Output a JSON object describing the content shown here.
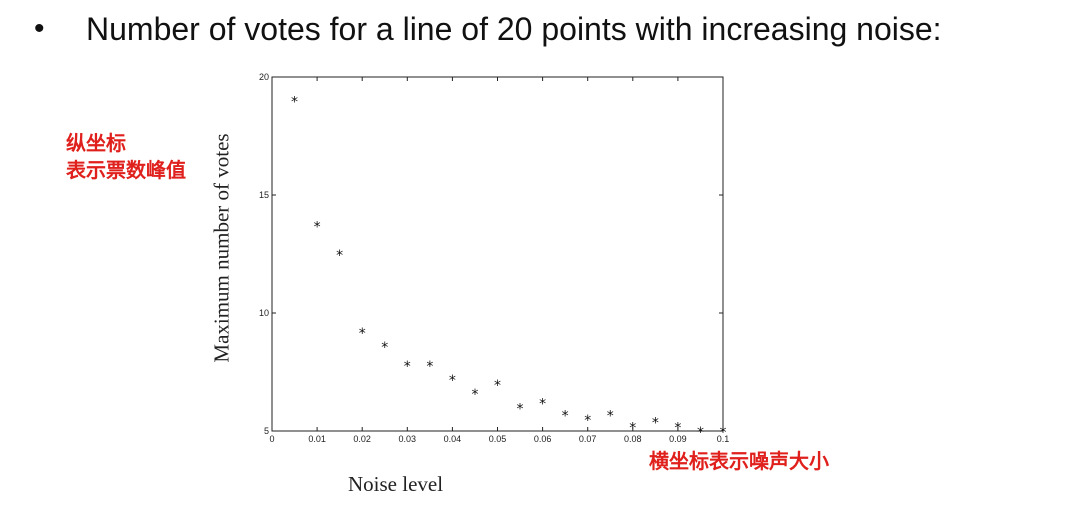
{
  "slide": {
    "bullet": "•",
    "heading": "Number of votes for a line of 20 points with increasing noise:"
  },
  "annotations": {
    "y_note_line1": "纵坐标",
    "y_note_line2": "表示票数峰值",
    "x_note": "横坐标表示噪声大小",
    "color": "#e0201c"
  },
  "chart_data": {
    "type": "scatter",
    "title": "",
    "xlabel": "Noise level",
    "ylabel": "Maximum number of votes",
    "xlim": [
      0,
      0.1
    ],
    "ylim": [
      5,
      20
    ],
    "x_ticks": [
      "0",
      "0.01",
      "0.02",
      "0.03",
      "0.04",
      "0.05",
      "0.06",
      "0.07",
      "0.08",
      "0.09",
      "0.1"
    ],
    "y_ticks": [
      "5",
      "10",
      "15",
      "20"
    ],
    "marker": "*",
    "grid": false,
    "series": [
      {
        "x": [
          0.005,
          0.01,
          0.015,
          0.02,
          0.025,
          0.03,
          0.035,
          0.04,
          0.045,
          0.05,
          0.055,
          0.06,
          0.065,
          0.07,
          0.075,
          0.08,
          0.085,
          0.09,
          0.095,
          0.1
        ],
        "y": [
          19.0,
          13.7,
          12.5,
          9.2,
          8.6,
          7.8,
          7.8,
          7.2,
          6.6,
          7.0,
          6.0,
          6.2,
          5.7,
          5.5,
          5.7,
          5.2,
          5.4,
          5.2,
          5.0,
          5.0
        ]
      }
    ]
  }
}
